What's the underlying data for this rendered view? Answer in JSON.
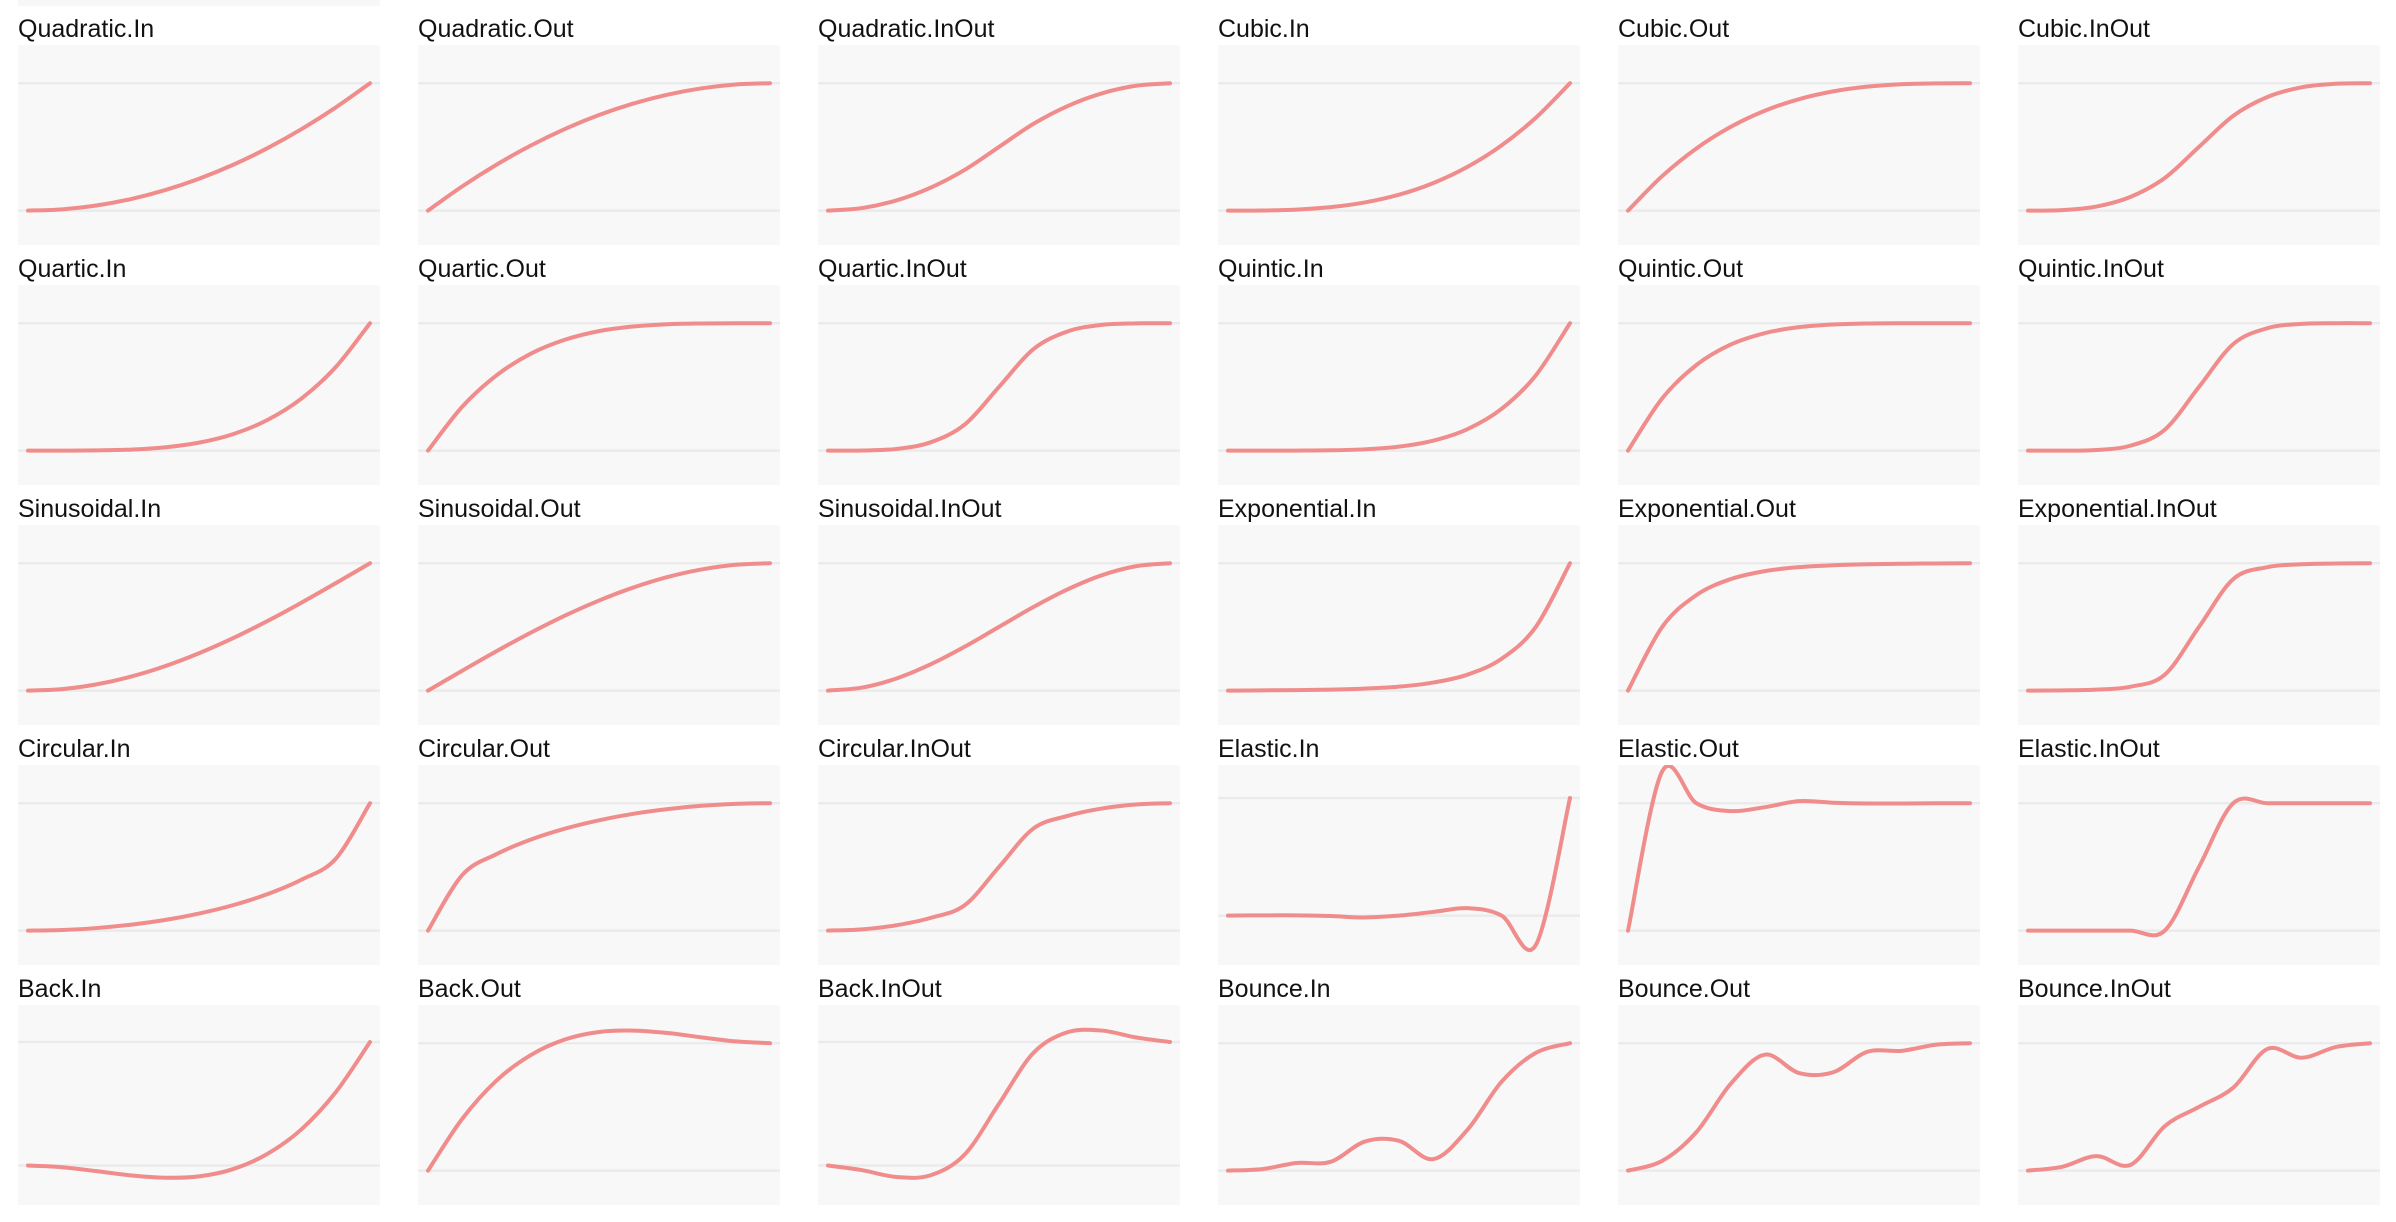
{
  "colors": {
    "curve": "#f08c8c",
    "plot_background": "#f8f8f8",
    "reference_line": "#ebebeb",
    "title_text": "#111111"
  },
  "chart_data": [
    {
      "type": "line",
      "title": "Quadratic.In",
      "x": [
        0,
        0.1,
        0.2,
        0.3,
        0.4,
        0.5,
        0.6,
        0.7,
        0.8,
        0.9,
        1
      ],
      "y": [
        0,
        0.01,
        0.04,
        0.09,
        0.16,
        0.25,
        0.36,
        0.49,
        0.64,
        0.81,
        1
      ],
      "ylim": [
        -0.27,
        1.3
      ]
    },
    {
      "type": "line",
      "title": "Quadratic.Out",
      "x": [
        0,
        0.1,
        0.2,
        0.3,
        0.4,
        0.5,
        0.6,
        0.7,
        0.8,
        0.9,
        1
      ],
      "y": [
        0,
        0.19,
        0.36,
        0.51,
        0.64,
        0.75,
        0.84,
        0.91,
        0.96,
        0.99,
        1
      ],
      "ylim": [
        -0.27,
        1.3
      ]
    },
    {
      "type": "line",
      "title": "Quadratic.InOut",
      "x": [
        0,
        0.1,
        0.2,
        0.3,
        0.4,
        0.5,
        0.6,
        0.7,
        0.8,
        0.9,
        1
      ],
      "y": [
        0,
        0.02,
        0.08,
        0.18,
        0.32,
        0.5,
        0.68,
        0.82,
        0.92,
        0.98,
        1
      ],
      "ylim": [
        -0.27,
        1.3
      ]
    },
    {
      "type": "line",
      "title": "Cubic.In",
      "x": [
        0,
        0.1,
        0.2,
        0.3,
        0.4,
        0.5,
        0.6,
        0.7,
        0.8,
        0.9,
        1
      ],
      "y": [
        0,
        0.001,
        0.008,
        0.027,
        0.064,
        0.125,
        0.216,
        0.343,
        0.512,
        0.729,
        1
      ],
      "ylim": [
        -0.27,
        1.3
      ]
    },
    {
      "type": "line",
      "title": "Cubic.Out",
      "x": [
        0,
        0.1,
        0.2,
        0.3,
        0.4,
        0.5,
        0.6,
        0.7,
        0.8,
        0.9,
        1
      ],
      "y": [
        0,
        0.271,
        0.488,
        0.657,
        0.784,
        0.875,
        0.936,
        0.973,
        0.992,
        0.999,
        1
      ],
      "ylim": [
        -0.27,
        1.3
      ]
    },
    {
      "type": "line",
      "title": "Cubic.InOut",
      "x": [
        0,
        0.1,
        0.2,
        0.3,
        0.4,
        0.5,
        0.6,
        0.7,
        0.8,
        0.9,
        1
      ],
      "y": [
        0,
        0.004,
        0.032,
        0.108,
        0.256,
        0.5,
        0.744,
        0.892,
        0.968,
        0.996,
        1
      ],
      "ylim": [
        -0.27,
        1.3
      ]
    },
    {
      "type": "line",
      "title": "Quartic.In",
      "x": [
        0,
        0.1,
        0.2,
        0.3,
        0.4,
        0.5,
        0.6,
        0.7,
        0.8,
        0.9,
        1
      ],
      "y": [
        0,
        0.0001,
        0.0016,
        0.0081,
        0.0256,
        0.0625,
        0.1296,
        0.2401,
        0.4096,
        0.6561,
        1
      ],
      "ylim": [
        -0.27,
        1.3
      ]
    },
    {
      "type": "line",
      "title": "Quartic.Out",
      "x": [
        0,
        0.1,
        0.2,
        0.3,
        0.4,
        0.5,
        0.6,
        0.7,
        0.8,
        0.9,
        1
      ],
      "y": [
        0,
        0.344,
        0.59,
        0.76,
        0.87,
        0.938,
        0.974,
        0.992,
        0.998,
        1.0,
        1
      ],
      "ylim": [
        -0.27,
        1.3
      ]
    },
    {
      "type": "line",
      "title": "Quartic.InOut",
      "x": [
        0,
        0.1,
        0.2,
        0.3,
        0.4,
        0.5,
        0.6,
        0.7,
        0.8,
        0.9,
        1
      ],
      "y": [
        0,
        0.001,
        0.013,
        0.065,
        0.205,
        0.5,
        0.795,
        0.935,
        0.987,
        0.999,
        1
      ],
      "ylim": [
        -0.27,
        1.3
      ]
    },
    {
      "type": "line",
      "title": "Quintic.In",
      "x": [
        0,
        0.1,
        0.2,
        0.3,
        0.4,
        0.5,
        0.6,
        0.7,
        0.8,
        0.9,
        1
      ],
      "y": [
        0,
        0.0,
        0.0003,
        0.0024,
        0.0102,
        0.0313,
        0.0778,
        0.1681,
        0.3277,
        0.5905,
        1
      ],
      "ylim": [
        -0.27,
        1.3
      ]
    },
    {
      "type": "line",
      "title": "Quintic.Out",
      "x": [
        0,
        0.1,
        0.2,
        0.3,
        0.4,
        0.5,
        0.6,
        0.7,
        0.8,
        0.9,
        1
      ],
      "y": [
        0,
        0.41,
        0.672,
        0.832,
        0.922,
        0.969,
        0.99,
        0.998,
        1.0,
        1.0,
        1
      ],
      "ylim": [
        -0.27,
        1.3
      ]
    },
    {
      "type": "line",
      "title": "Quintic.InOut",
      "x": [
        0,
        0.1,
        0.2,
        0.3,
        0.4,
        0.5,
        0.6,
        0.7,
        0.8,
        0.9,
        1
      ],
      "y": [
        0,
        0.0,
        0.005,
        0.039,
        0.164,
        0.5,
        0.836,
        0.961,
        0.995,
        1.0,
        1
      ],
      "ylim": [
        -0.27,
        1.3
      ]
    },
    {
      "type": "line",
      "title": "Sinusoidal.In",
      "x": [
        0,
        0.1,
        0.2,
        0.3,
        0.4,
        0.5,
        0.6,
        0.7,
        0.8,
        0.9,
        1
      ],
      "y": [
        0,
        0.012,
        0.049,
        0.109,
        0.191,
        0.293,
        0.412,
        0.546,
        0.691,
        0.844,
        1
      ],
      "ylim": [
        -0.27,
        1.3
      ]
    },
    {
      "type": "line",
      "title": "Sinusoidal.Out",
      "x": [
        0,
        0.1,
        0.2,
        0.3,
        0.4,
        0.5,
        0.6,
        0.7,
        0.8,
        0.9,
        1
      ],
      "y": [
        0,
        0.156,
        0.309,
        0.454,
        0.588,
        0.707,
        0.809,
        0.891,
        0.951,
        0.988,
        1
      ],
      "ylim": [
        -0.27,
        1.3
      ]
    },
    {
      "type": "line",
      "title": "Sinusoidal.InOut",
      "x": [
        0,
        0.1,
        0.2,
        0.3,
        0.4,
        0.5,
        0.6,
        0.7,
        0.8,
        0.9,
        1
      ],
      "y": [
        0,
        0.024,
        0.095,
        0.206,
        0.345,
        0.5,
        0.655,
        0.794,
        0.905,
        0.976,
        1
      ],
      "ylim": [
        -0.27,
        1.3
      ]
    },
    {
      "type": "line",
      "title": "Exponential.In",
      "x": [
        0,
        0.1,
        0.2,
        0.3,
        0.4,
        0.5,
        0.6,
        0.7,
        0.8,
        0.9,
        1
      ],
      "y": [
        0,
        0.002,
        0.004,
        0.008,
        0.016,
        0.031,
        0.063,
        0.125,
        0.25,
        0.5,
        1
      ],
      "ylim": [
        -0.27,
        1.3
      ]
    },
    {
      "type": "line",
      "title": "Exponential.Out",
      "x": [
        0,
        0.1,
        0.2,
        0.3,
        0.4,
        0.5,
        0.6,
        0.7,
        0.8,
        0.9,
        1
      ],
      "y": [
        0,
        0.5,
        0.75,
        0.875,
        0.938,
        0.969,
        0.984,
        0.992,
        0.996,
        0.998,
        1
      ],
      "ylim": [
        -0.27,
        1.3
      ]
    },
    {
      "type": "line",
      "title": "Exponential.InOut",
      "x": [
        0,
        0.1,
        0.2,
        0.3,
        0.4,
        0.5,
        0.6,
        0.7,
        0.8,
        0.9,
        1
      ],
      "y": [
        0,
        0.002,
        0.008,
        0.031,
        0.125,
        0.5,
        0.875,
        0.969,
        0.992,
        0.998,
        1
      ],
      "ylim": [
        -0.27,
        1.3
      ]
    },
    {
      "type": "line",
      "title": "Circular.In",
      "x": [
        0,
        0.1,
        0.2,
        0.3,
        0.4,
        0.5,
        0.6,
        0.7,
        0.8,
        0.9,
        1
      ],
      "y": [
        0,
        0.005,
        0.02,
        0.046,
        0.083,
        0.134,
        0.2,
        0.286,
        0.4,
        0.564,
        1
      ],
      "ylim": [
        -0.27,
        1.3
      ]
    },
    {
      "type": "line",
      "title": "Circular.Out",
      "x": [
        0,
        0.1,
        0.2,
        0.3,
        0.4,
        0.5,
        0.6,
        0.7,
        0.8,
        0.9,
        1
      ],
      "y": [
        0,
        0.436,
        0.6,
        0.714,
        0.8,
        0.866,
        0.917,
        0.954,
        0.98,
        0.995,
        1
      ],
      "ylim": [
        -0.27,
        1.3
      ]
    },
    {
      "type": "line",
      "title": "Circular.InOut",
      "x": [
        0,
        0.1,
        0.2,
        0.3,
        0.4,
        0.5,
        0.6,
        0.7,
        0.8,
        0.9,
        1
      ],
      "y": [
        0,
        0.01,
        0.042,
        0.1,
        0.2,
        0.5,
        0.8,
        0.9,
        0.958,
        0.99,
        1
      ],
      "ylim": [
        -0.27,
        1.3
      ]
    },
    {
      "type": "line",
      "title": "Elastic.In",
      "x": [
        0,
        0.1,
        0.2,
        0.3,
        0.4,
        0.5,
        0.6,
        0.7,
        0.8,
        0.9,
        1
      ],
      "y": [
        0,
        0.002,
        0.002,
        -0.004,
        -0.016,
        0.0,
        0.031,
        0.063,
        0.0,
        -0.25,
        1
      ],
      "ylim": [
        -0.42,
        1.28
      ]
    },
    {
      "type": "line",
      "title": "Elastic.Out",
      "x": [
        0,
        0.1,
        0.2,
        0.3,
        0.4,
        0.5,
        0.6,
        0.7,
        0.8,
        0.9,
        1
      ],
      "y": [
        0,
        1.25,
        1.0,
        0.938,
        0.969,
        1.016,
        1.004,
        0.998,
        0.998,
        1.0,
        1
      ],
      "ylim": [
        -0.27,
        1.3
      ]
    },
    {
      "type": "line",
      "title": "Elastic.InOut",
      "x": [
        0,
        0.1,
        0.2,
        0.3,
        0.4,
        0.5,
        0.6,
        0.7,
        0.8,
        0.9,
        1
      ],
      "y": [
        0,
        0.0,
        0.0,
        0.0,
        0.0,
        0.5,
        1.0,
        1.0,
        1.0,
        1.0,
        1
      ],
      "ylim": [
        -0.27,
        1.3
      ]
    },
    {
      "type": "line",
      "title": "Back.In",
      "x": [
        0,
        0.1,
        0.2,
        0.3,
        0.4,
        0.5,
        0.6,
        0.7,
        0.8,
        0.9,
        1
      ],
      "y": [
        0,
        -0.014,
        -0.046,
        -0.08,
        -0.099,
        -0.088,
        -0.029,
        0.094,
        0.294,
        0.594,
        1
      ],
      "ylim": [
        -0.32,
        1.3
      ]
    },
    {
      "type": "line",
      "title": "Back.Out",
      "x": [
        0,
        0.1,
        0.2,
        0.3,
        0.4,
        0.5,
        0.6,
        0.7,
        0.8,
        0.9,
        1
      ],
      "y": [
        0,
        0.406,
        0.706,
        0.906,
        1.029,
        1.088,
        1.099,
        1.08,
        1.046,
        1.014,
        1
      ],
      "ylim": [
        -0.27,
        1.3
      ]
    },
    {
      "type": "line",
      "title": "Back.InOut",
      "x": [
        0,
        0.1,
        0.2,
        0.3,
        0.4,
        0.5,
        0.6,
        0.7,
        0.8,
        0.9,
        1
      ],
      "y": [
        0,
        -0.038,
        -0.093,
        -0.079,
        0.09,
        0.5,
        0.91,
        1.079,
        1.093,
        1.038,
        1
      ],
      "ylim": [
        -0.32,
        1.3
      ]
    },
    {
      "type": "line",
      "title": "Bounce.In",
      "x": [
        0,
        0.1,
        0.2,
        0.3,
        0.4,
        0.5,
        0.6,
        0.7,
        0.8,
        0.9,
        1
      ],
      "y": [
        0,
        0.012,
        0.06,
        0.069,
        0.228,
        0.234,
        0.09,
        0.32,
        0.698,
        0.924,
        1
      ],
      "ylim": [
        -0.27,
        1.3
      ]
    },
    {
      "type": "line",
      "title": "Bounce.Out",
      "x": [
        0,
        0.1,
        0.2,
        0.3,
        0.4,
        0.5,
        0.6,
        0.7,
        0.8,
        0.9,
        1
      ],
      "y": [
        0,
        0.076,
        0.302,
        0.68,
        0.91,
        0.766,
        0.772,
        0.933,
        0.94,
        0.988,
        1
      ],
      "ylim": [
        -0.27,
        1.3
      ]
    },
    {
      "type": "line",
      "title": "Bounce.InOut",
      "x": [
        0,
        0.1,
        0.2,
        0.3,
        0.4,
        0.5,
        0.6,
        0.7,
        0.8,
        0.9,
        1
      ],
      "y": [
        0,
        0.03,
        0.114,
        0.045,
        0.349,
        0.5,
        0.651,
        0.955,
        0.886,
        0.97,
        1
      ],
      "ylim": [
        -0.27,
        1.3
      ]
    }
  ]
}
